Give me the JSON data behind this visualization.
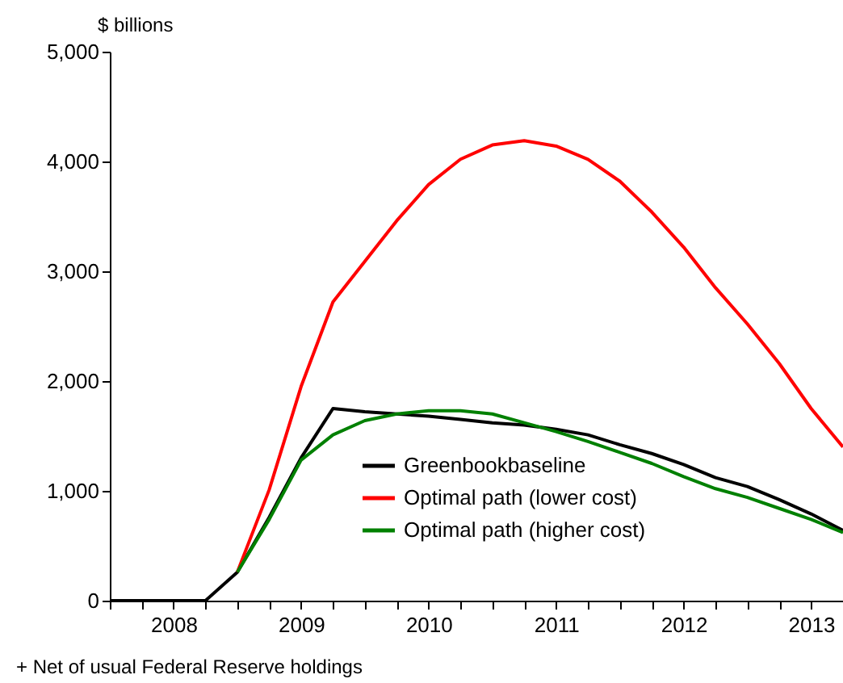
{
  "chart_data": {
    "type": "line",
    "ylabel": "$ billions",
    "annotations": [
      "+ Net of usual Federal Reserve holdings"
    ],
    "x": [
      2008.0,
      2008.25,
      2008.5,
      2008.75,
      2009.0,
      2009.25,
      2009.5,
      2009.75,
      2010.0,
      2010.25,
      2010.5,
      2010.75,
      2011.0,
      2011.25,
      2011.5,
      2011.75,
      2012.0,
      2012.25,
      2012.5,
      2012.75,
      2013.0,
      2013.25,
      2013.5,
      2013.75
    ],
    "series": [
      {
        "name": "Greenbookbaseline",
        "color": "#000000",
        "values": [
          0,
          0,
          0,
          0,
          260,
          760,
          1300,
          1750,
          1720,
          1700,
          1680,
          1650,
          1620,
          1600,
          1560,
          1510,
          1420,
          1340,
          1240,
          1120,
          1040,
          920,
          790,
          640
        ]
      },
      {
        "name": "Optimal path (lower cost)",
        "color": "#ff0000",
        "values": [
          null,
          null,
          null,
          null,
          260,
          1010,
          1950,
          2720,
          3090,
          3460,
          3790,
          4020,
          4150,
          4190,
          4140,
          4020,
          3820,
          3540,
          3220,
          2850,
          2520,
          2160,
          1750,
          1400
        ]
      },
      {
        "name": "Optimal path (higher cost)",
        "color": "#008000",
        "values": [
          null,
          null,
          null,
          null,
          260,
          740,
          1280,
          1510,
          1640,
          1700,
          1730,
          1730,
          1700,
          1620,
          1540,
          1450,
          1350,
          1250,
          1130,
          1020,
          940,
          840,
          740,
          620
        ]
      }
    ],
    "xlim": [
      2008.0,
      2013.75
    ],
    "xticks": [
      {
        "value": 2008.0,
        "label": null
      },
      {
        "value": 2008.25,
        "label": null
      },
      {
        "value": 2008.5,
        "label": "2008"
      },
      {
        "value": 2008.75,
        "label": null
      },
      {
        "value": 2009.0,
        "label": null
      },
      {
        "value": 2009.25,
        "label": null
      },
      {
        "value": 2009.5,
        "label": "2009"
      },
      {
        "value": 2009.75,
        "label": null
      },
      {
        "value": 2010.0,
        "label": null
      },
      {
        "value": 2010.25,
        "label": null
      },
      {
        "value": 2010.5,
        "label": "2010"
      },
      {
        "value": 2010.75,
        "label": null
      },
      {
        "value": 2011.0,
        "label": null
      },
      {
        "value": 2011.25,
        "label": null
      },
      {
        "value": 2011.5,
        "label": "2011"
      },
      {
        "value": 2011.75,
        "label": null
      },
      {
        "value": 2012.0,
        "label": null
      },
      {
        "value": 2012.25,
        "label": null
      },
      {
        "value": 2012.5,
        "label": "2012"
      },
      {
        "value": 2012.75,
        "label": null
      },
      {
        "value": 2013.0,
        "label": null
      },
      {
        "value": 2013.25,
        "label": null
      },
      {
        "value": 2013.5,
        "label": "2013"
      }
    ],
    "ylim": [
      0,
      5000
    ],
    "yticks": [
      {
        "value": 0,
        "label": "0"
      },
      {
        "value": 1000,
        "label": "1,000"
      },
      {
        "value": 2000,
        "label": "2,000"
      },
      {
        "value": 3000,
        "label": "3,000"
      },
      {
        "value": 4000,
        "label": "4,000"
      },
      {
        "value": 5000,
        "label": "5,000"
      }
    ],
    "grid": false,
    "legend": "bottom",
    "line_style": "solid",
    "marker": "none"
  }
}
